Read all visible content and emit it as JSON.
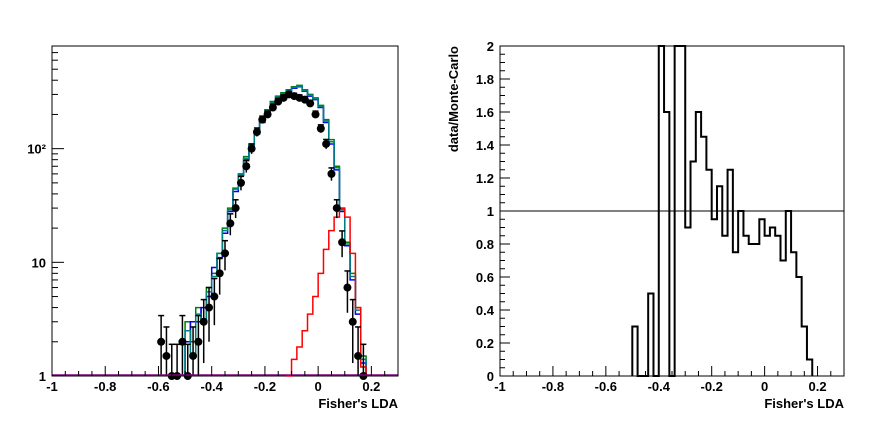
{
  "chart_data": [
    {
      "type": "histogram",
      "title": "",
      "xlabel": "Fisher's LDA",
      "ylabel": "",
      "xlim": [
        -1,
        0.3
      ],
      "ylim": [
        1,
        800
      ],
      "yscale": "log",
      "grid": false,
      "x_ticks": [
        -1,
        -0.8,
        -0.6,
        -0.4,
        -0.2,
        0,
        0.2
      ],
      "x_tick_labels": [
        "-1",
        "-0.8",
        "-0.6",
        "-0.4",
        "-0.2",
        "0",
        "0.2"
      ],
      "y_ticks": [
        1,
        10,
        100
      ],
      "y_tick_labels": [
        "1",
        "10",
        "10²"
      ],
      "series": [
        {
          "color": "#008000",
          "x": [
            -0.5,
            -0.48,
            -0.46,
            -0.44,
            -0.42,
            -0.4,
            -0.38,
            -0.36,
            -0.34,
            -0.32,
            -0.3,
            -0.28,
            -0.26,
            -0.24,
            -0.22,
            -0.2,
            -0.18,
            -0.16,
            -0.14,
            -0.12,
            -0.1,
            -0.08,
            -0.06,
            -0.04,
            -0.02,
            0.0,
            0.02,
            0.04,
            0.06,
            0.08,
            0.1,
            0.12,
            0.14,
            0.16
          ],
          "values": [
            3,
            2,
            4,
            3,
            6,
            8,
            12,
            20,
            30,
            45,
            60,
            85,
            110,
            140,
            180,
            220,
            260,
            290,
            310,
            330,
            350,
            360,
            330,
            300,
            280,
            240,
            180,
            120,
            70,
            30,
            15,
            8,
            4,
            1.5
          ]
        },
        {
          "color": "#0000ff",
          "x": [
            -0.5,
            -0.48,
            -0.46,
            -0.44,
            -0.42,
            -0.4,
            -0.38,
            -0.36,
            -0.34,
            -0.32,
            -0.3,
            -0.28,
            -0.26,
            -0.24,
            -0.22,
            -0.2,
            -0.18,
            -0.16,
            -0.14,
            -0.12,
            -0.1,
            -0.08,
            -0.06,
            -0.04,
            -0.02,
            0.0,
            0.02,
            0.04,
            0.06,
            0.08,
            0.1,
            0.12,
            0.14,
            0.16
          ],
          "values": [
            2,
            3,
            3,
            4,
            5,
            9,
            11,
            18,
            28,
            42,
            58,
            80,
            105,
            135,
            170,
            210,
            250,
            280,
            300,
            320,
            340,
            350,
            320,
            290,
            270,
            230,
            170,
            110,
            65,
            28,
            14,
            7,
            3.5,
            1.3
          ]
        },
        {
          "color": "#008080",
          "x": [
            -0.5,
            -0.48,
            -0.46,
            -0.44,
            -0.42,
            -0.4,
            -0.38,
            -0.36,
            -0.34,
            -0.32,
            -0.3,
            -0.28,
            -0.26,
            -0.24,
            -0.22,
            -0.2,
            -0.18,
            -0.16,
            -0.14,
            -0.12,
            -0.1,
            -0.08,
            -0.06,
            -0.04,
            -0.02,
            0.0,
            0.02,
            0.04,
            0.06,
            0.08,
            0.1,
            0.12,
            0.14,
            0.16
          ],
          "values": [
            2.5,
            1.5,
            3.5,
            3,
            5.5,
            7.5,
            12,
            19,
            29,
            44,
            59,
            82,
            108,
            138,
            175,
            215,
            255,
            285,
            305,
            325,
            345,
            355,
            325,
            295,
            275,
            235,
            175,
            115,
            68,
            29,
            14.5,
            7.5,
            3.8,
            1.4
          ]
        },
        {
          "color": "#ff0000",
          "x": [
            -0.12,
            -0.1,
            -0.08,
            -0.06,
            -0.04,
            -0.02,
            0.0,
            0.02,
            0.04,
            0.06,
            0.08,
            0.1,
            0.12,
            0.14,
            0.16
          ],
          "values": [
            1,
            1.4,
            1.8,
            2.5,
            3.5,
            5,
            8,
            13,
            19,
            25,
            30,
            25,
            12,
            4,
            1.2
          ]
        },
        {
          "color": "#000000",
          "marker": "circle",
          "x": [
            -0.6,
            -0.58,
            -0.56,
            -0.54,
            -0.52,
            -0.5,
            -0.48,
            -0.46,
            -0.44,
            -0.42,
            -0.4,
            -0.38,
            -0.36,
            -0.34,
            -0.32,
            -0.3,
            -0.28,
            -0.26,
            -0.24,
            -0.22,
            -0.2,
            -0.18,
            -0.16,
            -0.14,
            -0.12,
            -0.1,
            -0.08,
            -0.06,
            -0.04,
            -0.02,
            0.0,
            0.02,
            0.04,
            0.06,
            0.08,
            0.1,
            0.12,
            0.14,
            0.16
          ],
          "values": [
            2,
            1.5,
            1,
            1,
            2,
            1,
            1.5,
            2,
            3,
            4,
            5,
            8,
            12,
            22,
            30,
            50,
            70,
            100,
            140,
            180,
            200,
            230,
            260,
            280,
            300,
            290,
            280,
            270,
            250,
            200,
            150,
            110,
            60,
            30,
            15,
            6,
            3,
            1.5,
            1
          ],
          "errors": [
            1.4,
            1.2,
            0.9,
            0.9,
            1.4,
            0.9,
            1.2,
            1.4,
            1.7,
            2,
            2.2,
            2.8,
            3.5,
            4.7,
            5.5,
            7,
            8.4,
            10,
            12,
            13.4,
            14,
            15,
            16,
            17,
            17,
            17,
            17,
            16,
            16,
            14,
            12,
            10.5,
            7.7,
            5.5,
            3.9,
            2.4,
            1.7,
            1.2,
            0.9
          ]
        }
      ]
    },
    {
      "type": "histogram",
      "title": "",
      "xlabel": "Fisher's LDA",
      "ylabel": "data/Monte-Carlo",
      "xlim": [
        -1,
        0.3
      ],
      "ylim": [
        0,
        2
      ],
      "yscale": "linear",
      "grid": false,
      "reference_line": 1,
      "x_ticks": [
        -1,
        -0.8,
        -0.6,
        -0.4,
        -0.2,
        0,
        0.2
      ],
      "x_tick_labels": [
        "-1",
        "-0.8",
        "-0.6",
        "-0.4",
        "-0.2",
        "0",
        "0.2"
      ],
      "y_ticks": [
        0,
        0.2,
        0.4,
        0.6,
        0.8,
        1,
        1.2,
        1.4,
        1.6,
        1.8,
        2
      ],
      "y_tick_labels": [
        "0",
        "0.2",
        "0.4",
        "0.6",
        "0.8",
        "1",
        "1.2",
        "1.4",
        "1.6",
        "1.8",
        "2"
      ],
      "series": [
        {
          "color": "#000000",
          "x": [
            -0.5,
            -0.48,
            -0.46,
            -0.44,
            -0.42,
            -0.4,
            -0.38,
            -0.36,
            -0.34,
            -0.32,
            -0.3,
            -0.28,
            -0.26,
            -0.24,
            -0.22,
            -0.2,
            -0.18,
            -0.16,
            -0.14,
            -0.12,
            -0.1,
            -0.08,
            -0.06,
            -0.04,
            -0.02,
            0.0,
            0.02,
            0.04,
            0.06,
            0.08,
            0.1,
            0.12,
            0.14,
            0.16
          ],
          "values": [
            0.3,
            0,
            0,
            0.5,
            0,
            2,
            1.6,
            0,
            2,
            2,
            0.9,
            1.3,
            1.6,
            1.45,
            1.25,
            0.95,
            1.15,
            0.85,
            1.25,
            0.75,
            1.0,
            0.85,
            0.8,
            0.8,
            0.95,
            0.85,
            0.9,
            0.85,
            0.7,
            1.0,
            0.75,
            0.6,
            0.3,
            0.1
          ]
        }
      ]
    }
  ]
}
